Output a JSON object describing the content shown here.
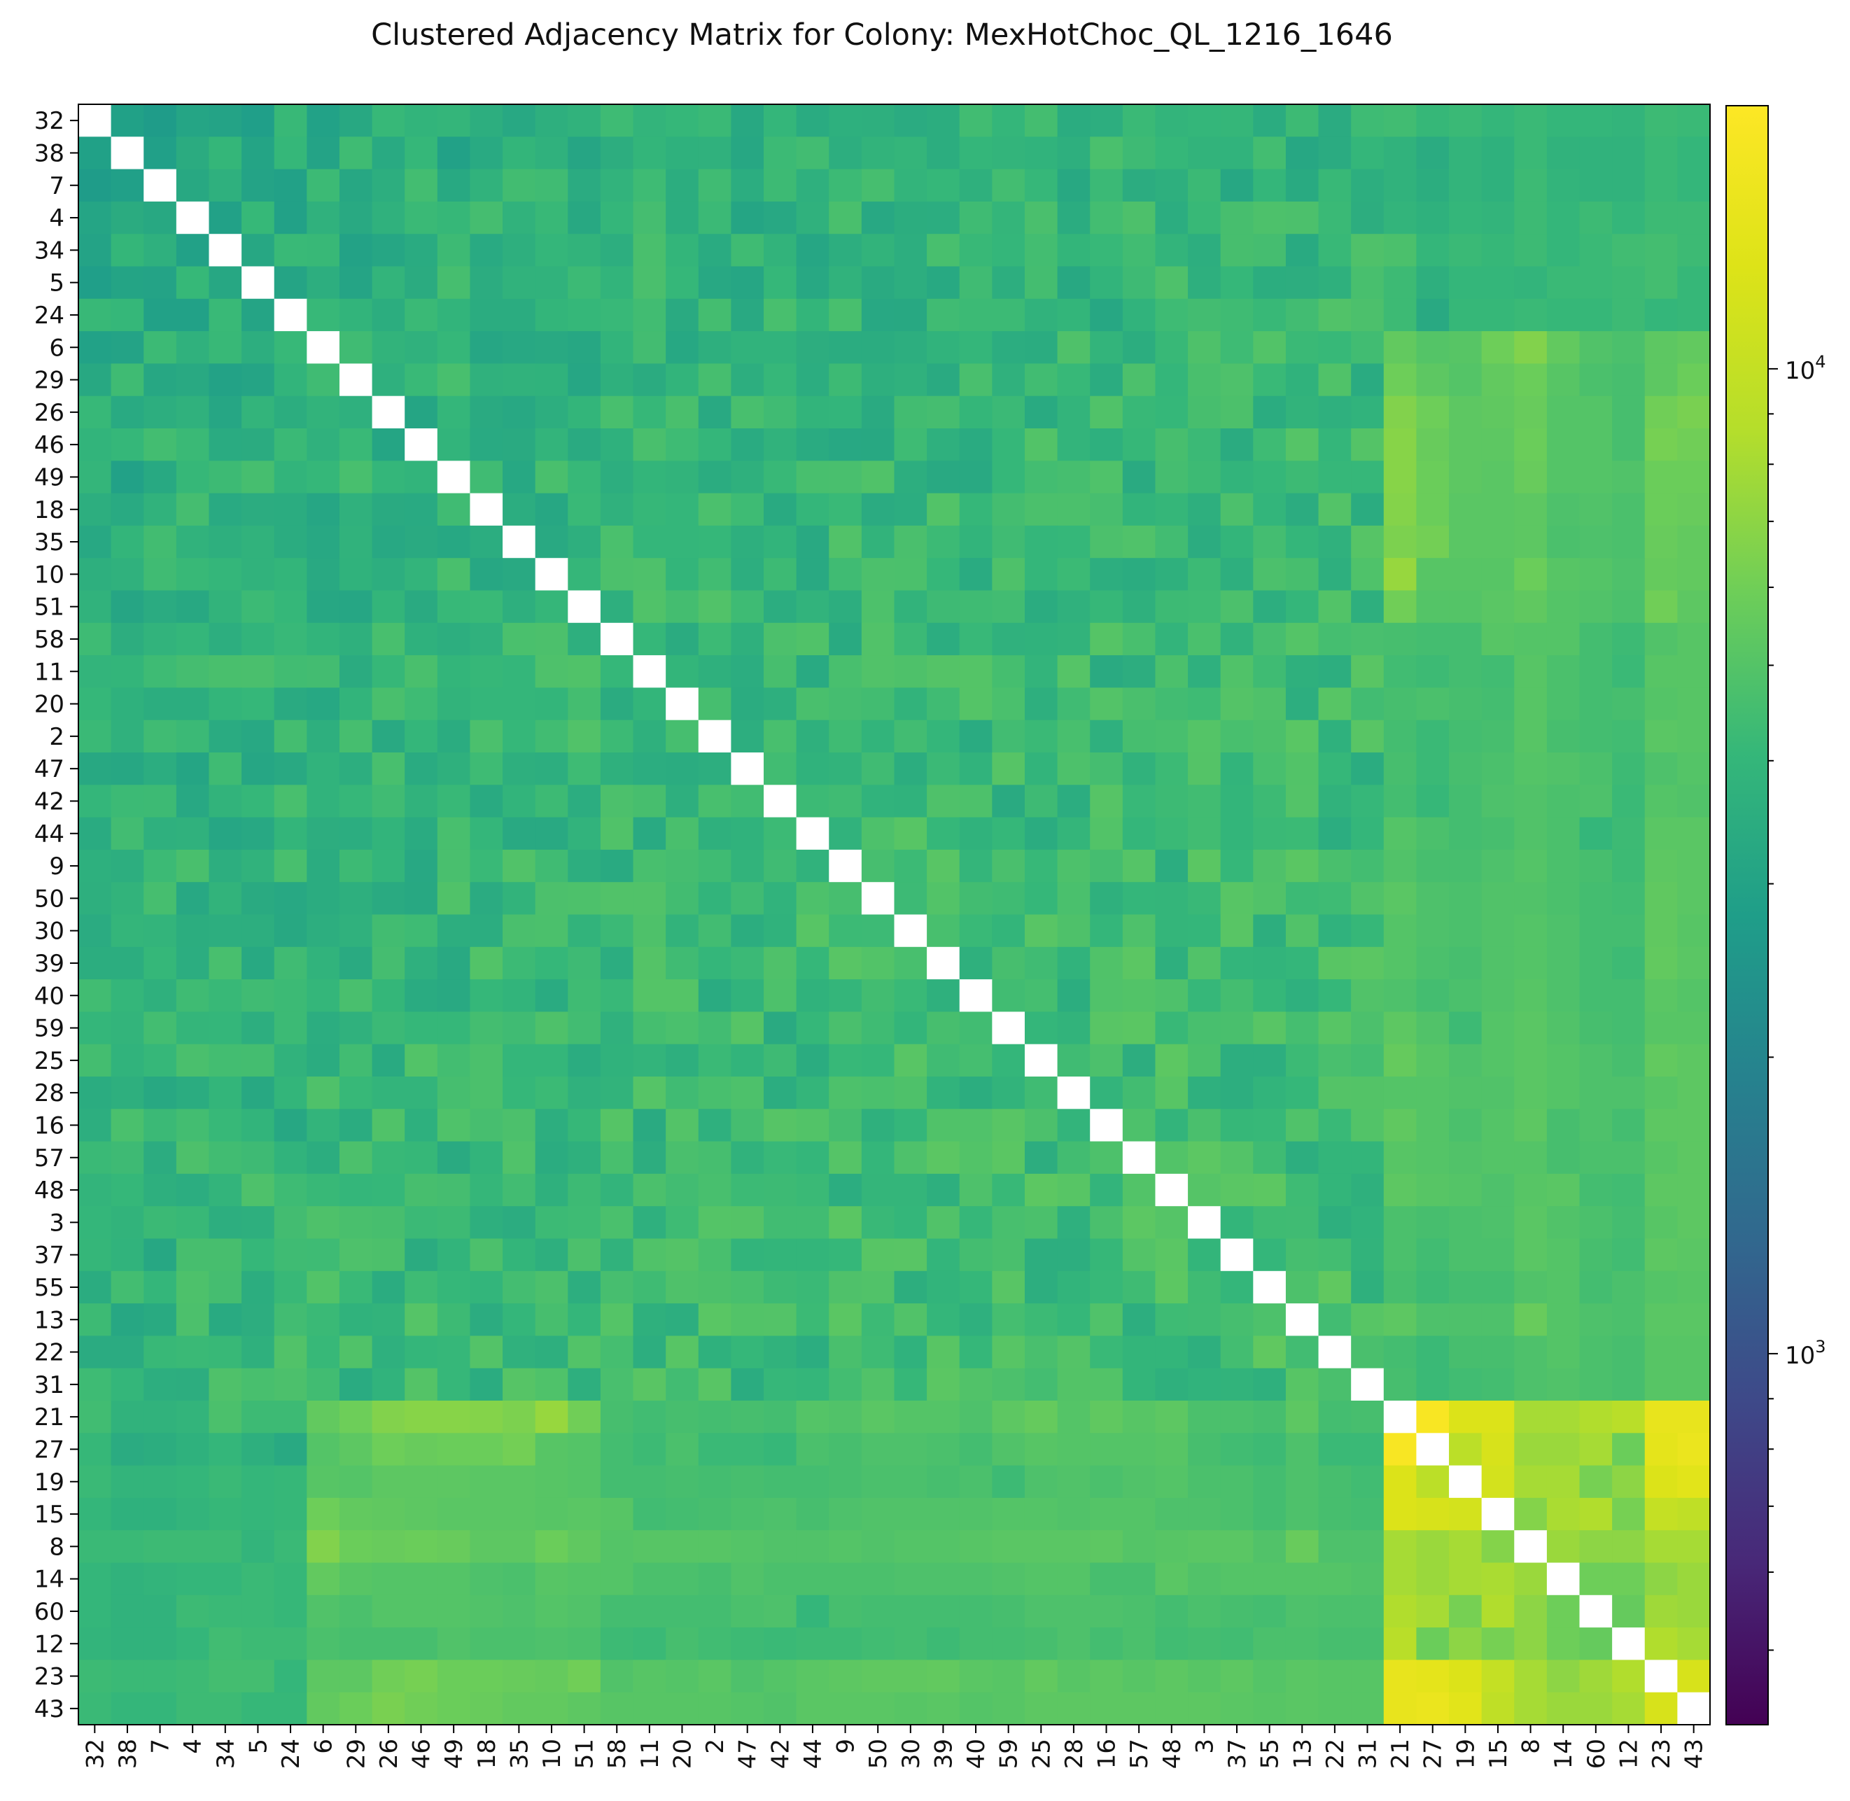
{
  "chart_data": {
    "type": "heatmap",
    "title": "Clustered Adjacency Matrix for Colony: MexHotChoc_QL_1216_1646",
    "xlabel": "",
    "ylabel": "",
    "labels": [
      "32",
      "38",
      "7",
      "4",
      "34",
      "5",
      "24",
      "6",
      "29",
      "26",
      "46",
      "49",
      "18",
      "35",
      "10",
      "51",
      "58",
      "11",
      "20",
      "2",
      "47",
      "42",
      "44",
      "9",
      "50",
      "30",
      "39",
      "40",
      "59",
      "25",
      "28",
      "16",
      "57",
      "48",
      "3",
      "37",
      "55",
      "13",
      "22",
      "31",
      "21",
      "27",
      "19",
      "15",
      "8",
      "14",
      "60",
      "12",
      "23",
      "43"
    ],
    "color_scale": "log",
    "colormap": "viridis",
    "vmin": 420,
    "vmax": 18500,
    "diagonal": "blank",
    "colorbar": {
      "major_ticks": [
        1000,
        10000
      ],
      "major_tick_labels": [
        "10^3",
        "10^4"
      ],
      "minor_ticks": [
        500,
        600,
        700,
        800,
        900,
        2000,
        3000,
        4000,
        5000,
        6000,
        7000,
        8000,
        9000
      ]
    },
    "block_structure": {
      "group_a_size": 40,
      "group_b_size": 10,
      "values_note": "approximate; cell values estimated from colour",
      "cross_block_values": {
        "21": [
          4400,
          3800,
          3800,
          3900,
          4700,
          4300,
          4300,
          5500,
          5900,
          6600,
          6800,
          6800,
          6700,
          6400,
          7400,
          6000,
          4600,
          4400,
          4600,
          4500,
          4600,
          4500,
          5000,
          4900,
          5200,
          5000,
          5000,
          4800,
          5300,
          5600,
          5000,
          5400,
          5100,
          5300,
          4700,
          4700,
          4600,
          5300,
          4500,
          4600
        ],
        "27": [
          4100,
          3400,
          3500,
          3700,
          4000,
          3600,
          3300,
          5000,
          5300,
          5900,
          5700,
          5800,
          5800,
          6100,
          5100,
          5000,
          4500,
          4300,
          4700,
          4200,
          4200,
          4100,
          4700,
          4600,
          4800,
          4800,
          4700,
          4500,
          4900,
          5100,
          5000,
          5000,
          5000,
          5100,
          4600,
          4400,
          4300,
          4800,
          4200,
          4200
        ],
        "19": [
          4200,
          3900,
          3900,
          4000,
          4200,
          4000,
          4100,
          5100,
          5000,
          5300,
          5300,
          5300,
          5200,
          5200,
          5100,
          5000,
          4500,
          4500,
          4600,
          4500,
          4600,
          4500,
          4500,
          4600,
          4700,
          4700,
          4600,
          4700,
          4300,
          4800,
          4900,
          4700,
          4900,
          5000,
          4700,
          4700,
          4500,
          4800,
          4600,
          4400
        ],
        "15": [
          4000,
          3700,
          3700,
          3900,
          4100,
          4000,
          4100,
          5900,
          5500,
          5400,
          5300,
          5200,
          5200,
          5200,
          5100,
          5200,
          5100,
          4400,
          4500,
          4600,
          4700,
          4800,
          4600,
          4800,
          4900,
          4900,
          4900,
          4900,
          5000,
          5000,
          4900,
          5000,
          5000,
          4800,
          4800,
          4700,
          4500,
          4800,
          4600,
          4500
        ],
        "8": [
          4200,
          4200,
          4300,
          4300,
          4300,
          3900,
          4200,
          6600,
          5800,
          5700,
          5800,
          5700,
          5300,
          5300,
          5800,
          5400,
          5000,
          5100,
          5100,
          5100,
          5000,
          4900,
          4900,
          5000,
          4900,
          5000,
          5000,
          5100,
          5200,
          5200,
          5200,
          5300,
          5000,
          5100,
          5200,
          5200,
          4900,
          5700,
          4800,
          4800
        ],
        "14": [
          4000,
          3800,
          3900,
          4000,
          4000,
          4200,
          4100,
          5500,
          5100,
          5000,
          5000,
          5000,
          4800,
          4700,
          5100,
          5000,
          5000,
          4700,
          4700,
          4600,
          4900,
          4700,
          4700,
          4700,
          4700,
          4800,
          4800,
          4800,
          4900,
          5000,
          5000,
          4600,
          4600,
          5200,
          4900,
          5000,
          5000,
          5000,
          5000,
          4900
        ],
        "60": [
          4000,
          3800,
          3800,
          4300,
          4200,
          4200,
          4100,
          4900,
          4700,
          5000,
          5000,
          5000,
          4900,
          4800,
          5000,
          4900,
          4500,
          4500,
          4500,
          4500,
          4700,
          4800,
          4000,
          4600,
          4500,
          4500,
          4500,
          4500,
          4600,
          4800,
          4800,
          4800,
          4700,
          4500,
          4700,
          4600,
          4500,
          4800,
          4700,
          4700
        ],
        "12": [
          3900,
          3800,
          3800,
          4000,
          4400,
          4300,
          4300,
          4700,
          4600,
          4600,
          4600,
          4900,
          4700,
          4700,
          4800,
          4700,
          4300,
          4200,
          4600,
          4400,
          4300,
          4200,
          4300,
          4300,
          4400,
          4500,
          4300,
          4500,
          4500,
          4600,
          4800,
          4500,
          4700,
          4400,
          4500,
          4400,
          4700,
          4700,
          4600,
          4600
        ],
        "23": [
          4300,
          4200,
          4200,
          4300,
          4500,
          4500,
          4000,
          5300,
          5300,
          6000,
          6200,
          5800,
          5800,
          5700,
          5600,
          6000,
          4900,
          5100,
          5000,
          5200,
          4800,
          5000,
          5200,
          5300,
          5400,
          5400,
          5500,
          5200,
          5100,
          5500,
          5100,
          5300,
          5100,
          5300,
          5100,
          5300,
          5000,
          5200,
          5100,
          5100
        ],
        "43": [
          4200,
          4000,
          4000,
          4300,
          4300,
          4100,
          4100,
          5500,
          5800,
          6300,
          6000,
          5800,
          5700,
          5500,
          5500,
          5300,
          5100,
          5100,
          5100,
          5100,
          5000,
          4900,
          5200,
          5200,
          5200,
          5100,
          5200,
          5000,
          5100,
          5300,
          5300,
          5300,
          5300,
          5300,
          5300,
          5200,
          5100,
          5200,
          5100,
          5100
        ]
      },
      "within_group_b": {
        "21": [
          null,
          17500,
          12500,
          12500,
          8000,
          8000,
          8500,
          9000,
          14500,
          14500
        ],
        "27": [
          17500,
          null,
          9200,
          12000,
          7500,
          7500,
          8000,
          5800,
          14000,
          15000
        ],
        "19": [
          12500,
          9200,
          null,
          11500,
          8000,
          8000,
          6200,
          7000,
          12500,
          13500
        ],
        "15": [
          12500,
          12000,
          11500,
          null,
          6700,
          8200,
          8500,
          6200,
          10000,
          9500
        ],
        "8": [
          8000,
          7500,
          8000,
          6700,
          null,
          7500,
          7000,
          7000,
          8000,
          8000
        ],
        "14": [
          8000,
          7500,
          8000,
          8200,
          7500,
          null,
          5900,
          5900,
          7000,
          7500
        ],
        "60": [
          8500,
          8000,
          6200,
          8500,
          7000,
          5900,
          null,
          5600,
          7700,
          7500
        ],
        "12": [
          9000,
          5800,
          7000,
          6200,
          7000,
          5900,
          5600,
          null,
          8500,
          8000
        ],
        "23": [
          14500,
          14000,
          12500,
          10000,
          8000,
          7000,
          7700,
          8500,
          null,
          12000
        ],
        "43": [
          14500,
          15000,
          13500,
          9500,
          8000,
          7500,
          7500,
          8000,
          12000,
          null
        ]
      }
    }
  }
}
